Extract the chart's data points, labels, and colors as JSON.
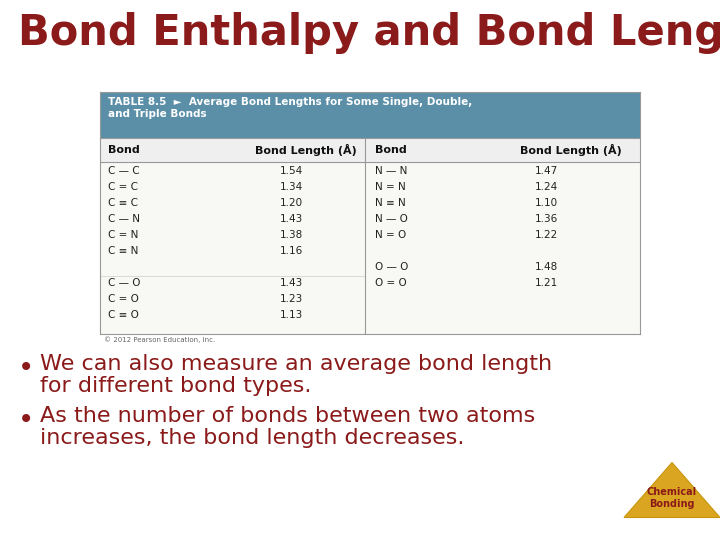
{
  "title": "Bond Enthalpy and Bond Length",
  "title_color": "#8B1A1A",
  "title_fontsize": 30,
  "bg_color": "#FFFFFF",
  "table_header_bg": "#5B8FA8",
  "table_header_text_color": "#FFFFFF",
  "table_header_title": "TABLE 8.5  ►  Average Bond Lengths for Some Single, Double,\nand Triple Bonds",
  "col_headers": [
    "Bond",
    "Bond Length (Å)",
    "Bond",
    "Bond Length (Å)"
  ],
  "left_data": [
    [
      "C — C",
      "1.54"
    ],
    [
      "C = C",
      "1.34"
    ],
    [
      "C ≡ C",
      "1.20"
    ],
    [
      "C — N",
      "1.43"
    ],
    [
      "C = N",
      "1.38"
    ],
    [
      "C ≡ N",
      "1.16"
    ],
    [
      "",
      ""
    ],
    [
      "C — O",
      "1.43"
    ],
    [
      "C = O",
      "1.23"
    ],
    [
      "C ≡ O",
      "1.13"
    ]
  ],
  "right_data": [
    [
      "N — N",
      "1.47"
    ],
    [
      "N = N",
      "1.24"
    ],
    [
      "N ≡ N",
      "1.10"
    ],
    [
      "N — O",
      "1.36"
    ],
    [
      "N = O",
      "1.22"
    ],
    [
      "",
      ""
    ],
    [
      "O — O",
      "1.48"
    ],
    [
      "O = O",
      "1.21"
    ],
    [
      "",
      ""
    ],
    [
      "",
      ""
    ]
  ],
  "bullet1_line1": "We can also measure an average bond length",
  "bullet1_line2": "for different bond types.",
  "bullet2_line1": "As the number of bonds between two atoms",
  "bullet2_line2": "increases, the bond length decreases.",
  "bullet_color": "#8B1A1A",
  "bullet_fontsize": 16,
  "triangle_color": "#DAA520",
  "triangle_label": "Chemical\nBonding",
  "copyright": "© 2012 Pearson Education, Inc."
}
